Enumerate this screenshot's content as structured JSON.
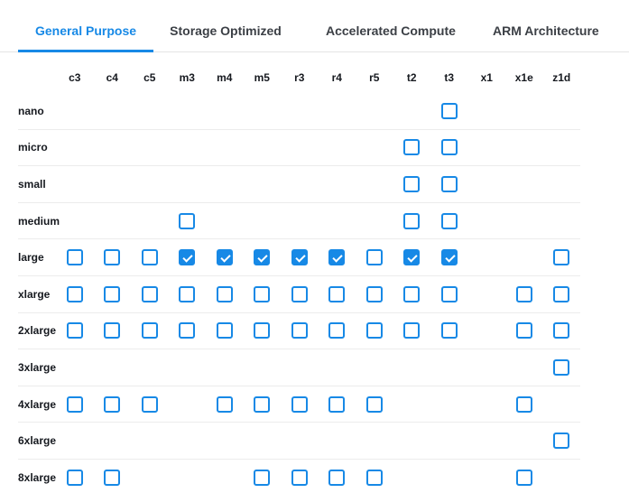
{
  "tabs": [
    {
      "label": "General Purpose",
      "active": true
    },
    {
      "label": "Storage Optimized",
      "active": false
    },
    {
      "label": "Accelerated Compute",
      "active": false
    },
    {
      "label": "ARM Architecture",
      "active": false
    }
  ],
  "matrix": {
    "columns": [
      "c3",
      "c4",
      "c5",
      "m3",
      "m4",
      "m5",
      "r3",
      "r4",
      "r5",
      "t2",
      "t3",
      "x1",
      "x1e",
      "z1d"
    ],
    "rows": [
      {
        "label": "nano",
        "cells": {
          "t3": "unchecked"
        }
      },
      {
        "label": "micro",
        "cells": {
          "t2": "unchecked",
          "t3": "unchecked"
        }
      },
      {
        "label": "small",
        "cells": {
          "t2": "unchecked",
          "t3": "unchecked"
        }
      },
      {
        "label": "medium",
        "cells": {
          "m3": "unchecked",
          "t2": "unchecked",
          "t3": "unchecked"
        }
      },
      {
        "label": "large",
        "cells": {
          "c3": "unchecked",
          "c4": "unchecked",
          "c5": "unchecked",
          "m3": "checked",
          "m4": "checked",
          "m5": "checked",
          "r3": "checked",
          "r4": "checked",
          "r5": "unchecked",
          "t2": "checked",
          "t3": "checked",
          "z1d": "unchecked"
        }
      },
      {
        "label": "xlarge",
        "cells": {
          "c3": "unchecked",
          "c4": "unchecked",
          "c5": "unchecked",
          "m3": "unchecked",
          "m4": "unchecked",
          "m5": "unchecked",
          "r3": "unchecked",
          "r4": "unchecked",
          "r5": "unchecked",
          "t2": "unchecked",
          "t3": "unchecked",
          "x1e": "unchecked",
          "z1d": "unchecked"
        }
      },
      {
        "label": "2xlarge",
        "cells": {
          "c3": "unchecked",
          "c4": "unchecked",
          "c5": "unchecked",
          "m3": "unchecked",
          "m4": "unchecked",
          "m5": "unchecked",
          "r3": "unchecked",
          "r4": "unchecked",
          "r5": "unchecked",
          "t2": "unchecked",
          "t3": "unchecked",
          "x1e": "unchecked",
          "z1d": "unchecked"
        }
      },
      {
        "label": "3xlarge",
        "cells": {
          "z1d": "unchecked"
        }
      },
      {
        "label": "4xlarge",
        "cells": {
          "c3": "unchecked",
          "c4": "unchecked",
          "c5": "unchecked",
          "m4": "unchecked",
          "m5": "unchecked",
          "r3": "unchecked",
          "r4": "unchecked",
          "r5": "unchecked",
          "x1e": "unchecked"
        }
      },
      {
        "label": "6xlarge",
        "cells": {
          "z1d": "unchecked"
        }
      },
      {
        "label": "8xlarge",
        "cells": {
          "c3": "unchecked",
          "c4": "unchecked",
          "m5": "unchecked",
          "r3": "unchecked",
          "r4": "unchecked",
          "r5": "unchecked",
          "x1e": "unchecked"
        }
      }
    ]
  },
  "colors": {
    "accent": "#1789e6",
    "tab_inactive_text": "#3b3f45",
    "text": "#16191f",
    "tab_divider": "#e4e4e4",
    "row_divider": "#ececec"
  }
}
